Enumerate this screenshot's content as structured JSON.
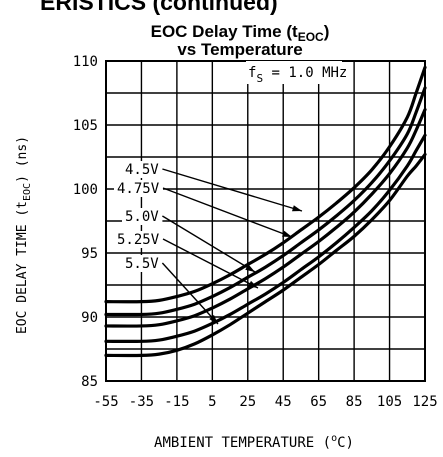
{
  "page": {
    "top_heading": "ERISTICS (continued)",
    "title_line1": "EOC Delay Time (t",
    "title_sub": "EOC",
    "title_line1_end": ")",
    "title_line2": "vs Temperature"
  },
  "chart_data": {
    "type": "line",
    "title": "EOC Delay Time (tEOC) vs Temperature",
    "xlabel": "AMBIENT TEMPERATURE (°C)",
    "ylabel": "EOC DELAY TIME (tEOC) (ns)",
    "ylabel_parts": {
      "pre": "EOC DELAY TIME (t",
      "sub": "EOC",
      "post": ") (ns)"
    },
    "xlabel_parts": {
      "pre": "AMBIENT TEMPERATURE (",
      "deg": "o",
      "post": "C)"
    },
    "annotation": {
      "pre": "f",
      "sub": "S",
      "post": " = 1.0 MHz"
    },
    "xlim": [
      -55,
      125
    ],
    "ylim": [
      85,
      110
    ],
    "x_ticks": [
      -55,
      -35,
      -15,
      5,
      25,
      45,
      65,
      85,
      105,
      125
    ],
    "x_tick_labels": [
      "-55",
      "-35",
      "-15",
      "5",
      "25",
      "45",
      "65",
      "85",
      "105",
      "125"
    ],
    "y_ticks": [
      85,
      90,
      95,
      100,
      105,
      110
    ],
    "y_tick_labels": [
      "85",
      "90",
      "95",
      "100",
      "105",
      "110"
    ],
    "grid": true,
    "x": [
      -55,
      -35,
      -25,
      -15,
      -5,
      5,
      15,
      25,
      35,
      45,
      55,
      65,
      75,
      85,
      95,
      105,
      115,
      120,
      125
    ],
    "series": [
      {
        "name": "4.5V",
        "values": [
          91.2,
          91.2,
          91.3,
          91.6,
          92.0,
          92.6,
          93.3,
          94.1,
          94.9,
          95.8,
          96.8,
          97.8,
          98.9,
          100.1,
          101.5,
          103.3,
          105.6,
          107.5,
          109.5
        ]
      },
      {
        "name": "4.75V",
        "values": [
          90.2,
          90.2,
          90.3,
          90.6,
          91.0,
          91.6,
          92.3,
          93.1,
          93.9,
          94.8,
          95.8,
          96.8,
          97.9,
          99.1,
          100.5,
          102.2,
          104.3,
          106.0,
          107.9
        ]
      },
      {
        "name": "5.0V",
        "values": [
          89.3,
          89.3,
          89.4,
          89.7,
          90.1,
          90.7,
          91.4,
          92.2,
          93.0,
          93.9,
          94.9,
          95.9,
          97.0,
          98.2,
          99.6,
          101.2,
          103.2,
          104.6,
          106.2
        ]
      },
      {
        "name": "5.25V",
        "values": [
          88.1,
          88.1,
          88.2,
          88.5,
          88.9,
          89.5,
          90.2,
          91.0,
          91.8,
          92.7,
          93.7,
          94.7,
          95.8,
          97.0,
          98.3,
          99.9,
          101.8,
          103.0,
          104.2
        ]
      },
      {
        "name": "5.5V",
        "values": [
          87.0,
          87.0,
          87.1,
          87.4,
          87.9,
          88.6,
          89.4,
          90.3,
          91.2,
          92.1,
          93.1,
          94.1,
          95.2,
          96.3,
          97.6,
          99.1,
          101.0,
          101.8,
          102.7
        ]
      }
    ],
    "series_label_text": [
      "4.5V",
      "4.75V",
      "5.0V",
      "5.25V",
      "5.5V"
    ]
  }
}
